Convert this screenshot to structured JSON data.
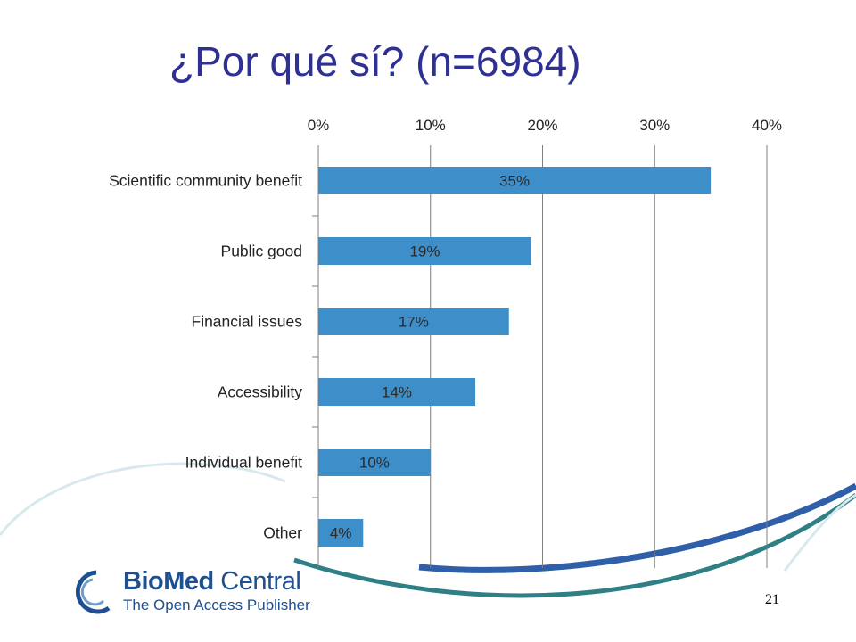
{
  "slide": {
    "title": "¿Por qué sí? (n=6984)",
    "page_number": "21"
  },
  "logo": {
    "word_bold": "BioMed",
    "word_regular": " Central",
    "tagline": "The Open Access Publisher"
  },
  "colors": {
    "title": "#2e3192",
    "bar": "#3d8ec9",
    "bar_label": "#2a2a2a",
    "grid": "#7f7f7f",
    "swoosh_blue": "#2e5fa8",
    "swoosh_teal": "#2f7f86"
  },
  "chart_data": {
    "type": "bar",
    "orientation": "horizontal",
    "categories": [
      "Scientific community benefit",
      "Public good",
      "Financial issues",
      "Accessibility",
      "Individual benefit",
      "Other"
    ],
    "values": [
      35,
      19,
      17,
      14,
      10,
      4
    ],
    "data_labels": [
      "35%",
      "19%",
      "17%",
      "14%",
      "10%",
      "4%"
    ],
    "value_unit": "%",
    "xlim": [
      0,
      40
    ],
    "x_ticks": [
      0,
      10,
      20,
      30,
      40
    ],
    "x_tick_labels": [
      "0%",
      "10%",
      "20%",
      "30%",
      "40%"
    ],
    "x_axis_position": "top",
    "grid": "vertical",
    "legend": "none"
  }
}
